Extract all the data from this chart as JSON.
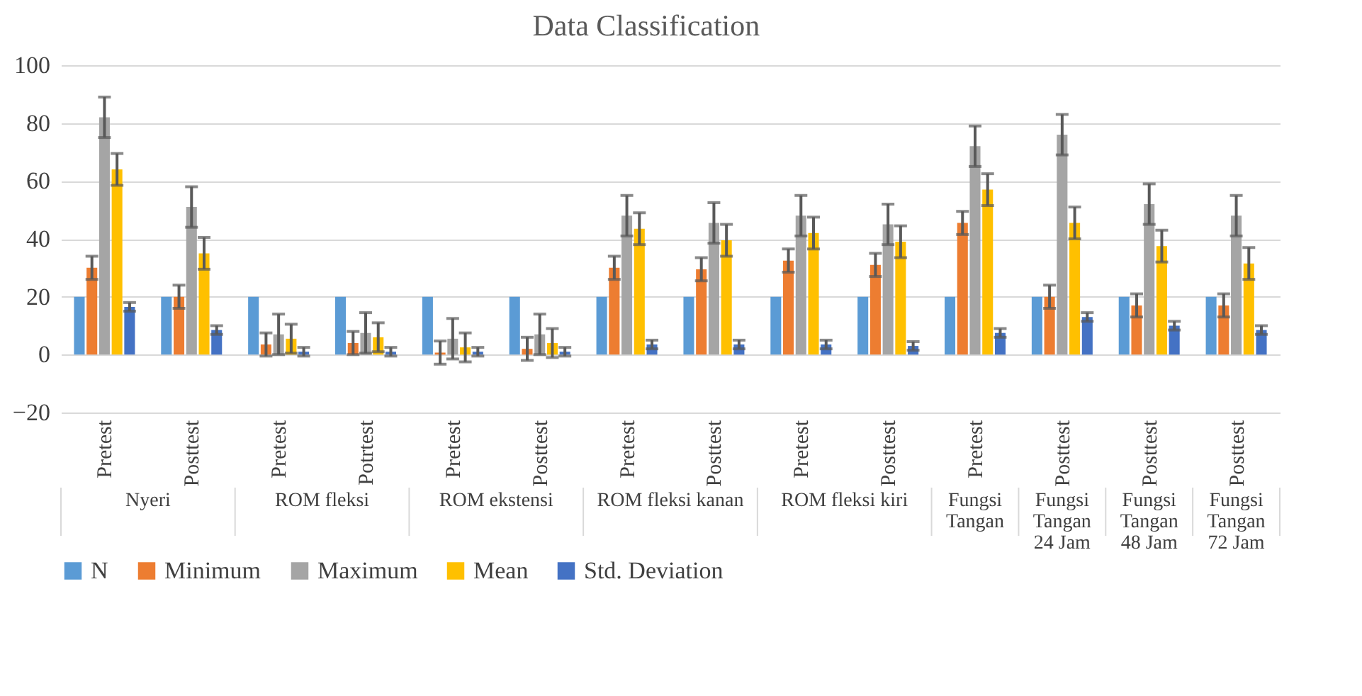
{
  "chart_data": {
    "type": "bar",
    "title": "Data Classification",
    "categories": [
      "Pretest",
      "Posttest",
      "Pretest",
      "Potrtest",
      "Pretest",
      "Posttest",
      "Pretest",
      "Posttest",
      "Pretest",
      "Posttest",
      "Pretest",
      "Posttest",
      "Posttest",
      "Posttest"
    ],
    "annotations": [
      "Nyeri",
      "ROM fleksi",
      "ROM ekstensi",
      "ROM fleksi kanan",
      "ROM fleksi kiri",
      "Fungsi Tangan",
      "Fungsi Tangan 24 Jam",
      "Fungsi Tangan 48 Jam",
      "Fungsi Tangan 72 Jam"
    ],
    "series": [
      {
        "name": "N",
        "color": "#5b9bd5",
        "values": [
          20,
          20,
          20,
          20,
          20,
          20,
          20,
          20,
          20,
          20,
          20,
          20,
          20,
          20
        ]
      },
      {
        "name": "Minimum",
        "color": "#ed7d31",
        "values": [
          30,
          20,
          3.5,
          4,
          0.7,
          2,
          30,
          29.5,
          32.5,
          31,
          45.5,
          20,
          17,
          17
        ],
        "errors": [
          4,
          4,
          4,
          4,
          4,
          4,
          4,
          4,
          4,
          4,
          4,
          4,
          4,
          4
        ]
      },
      {
        "name": "Maximum",
        "color": "#a5a5a5",
        "values": [
          82,
          51,
          7,
          7.5,
          5.5,
          7,
          48,
          45.5,
          48,
          45,
          72,
          76,
          52,
          48
        ],
        "errors": [
          7,
          7,
          7,
          7,
          7,
          7,
          7,
          7,
          7,
          7,
          7,
          7,
          7,
          7
        ]
      },
      {
        "name": "Mean",
        "color": "#ffc000",
        "values": [
          64,
          35,
          5.5,
          6,
          2.5,
          4,
          43.5,
          39.5,
          42,
          39,
          57,
          45.5,
          37.5,
          31.5
        ],
        "errors": [
          5.5,
          5.5,
          5,
          5,
          5,
          5,
          5.5,
          5.5,
          5.5,
          5.5,
          5.5,
          5.5,
          5.5,
          5.5
        ]
      },
      {
        "name": "Std. Deviation",
        "color": "#4472c4",
        "values": [
          16.5,
          8.5,
          1,
          1,
          1,
          1,
          3.5,
          3.5,
          3.5,
          3,
          7.5,
          13,
          10,
          8.5
        ],
        "errors": [
          1.5,
          1.5,
          1.5,
          1.5,
          1.5,
          1.5,
          1.5,
          1.5,
          1.5,
          1.5,
          1.5,
          1.5,
          1.5,
          1.5
        ]
      }
    ],
    "ylim": [
      -20,
      100
    ],
    "yticks": [
      -20,
      0,
      20,
      40,
      60,
      80,
      100
    ],
    "grid": "y",
    "legend": "bottom"
  }
}
